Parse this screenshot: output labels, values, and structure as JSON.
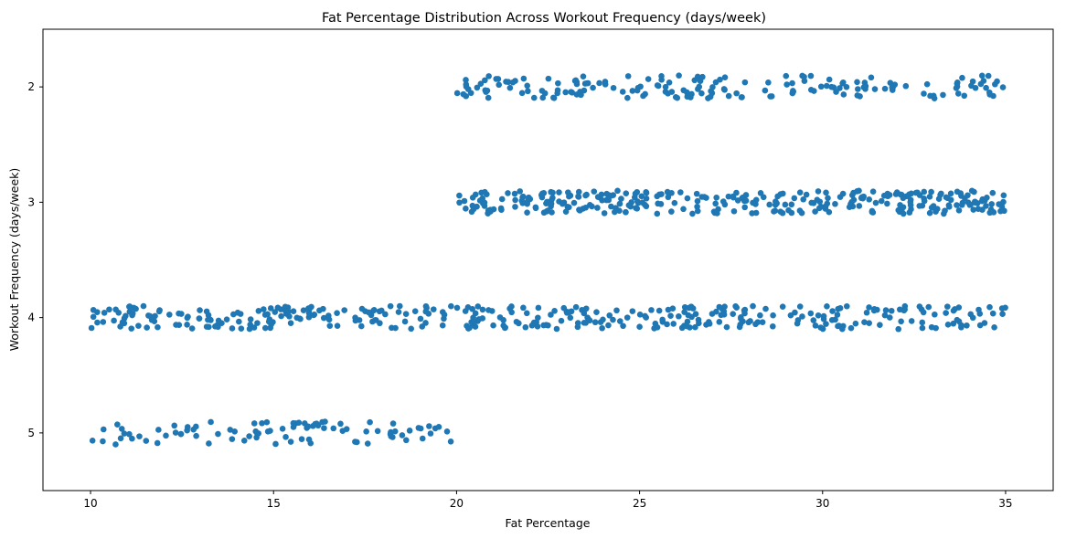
{
  "chart_data": {
    "type": "scatter",
    "title": "Fat Percentage Distribution Across Workout Frequency (days/week)",
    "xlabel": "Fat Percentage",
    "ylabel": "Workout Frequency (days/week)",
    "xlim": [
      8.7,
      36.3
    ],
    "ylim": [
      1.5,
      5.5
    ],
    "y_inverted": true,
    "x_ticks": [
      10,
      15,
      20,
      25,
      30,
      35
    ],
    "y_ticks": [
      2,
      3,
      4,
      5
    ],
    "y_tick_labels": [
      "2",
      "3",
      "4",
      "5"
    ],
    "grid": false,
    "marker_color": "#1f77b4",
    "marker": "circle",
    "jitter": 0.1,
    "categories": [
      {
        "frequency": 2,
        "x_min": 20.0,
        "x_max": 35.0,
        "count": 180
      },
      {
        "frequency": 3,
        "x_min": 20.0,
        "x_max": 35.0,
        "count": 320
      },
      {
        "frequency": 4,
        "x_min": 10.0,
        "x_max": 35.0,
        "count": 380
      },
      {
        "frequency": 5,
        "x_min": 10.0,
        "x_max": 20.0,
        "count": 90
      }
    ]
  }
}
